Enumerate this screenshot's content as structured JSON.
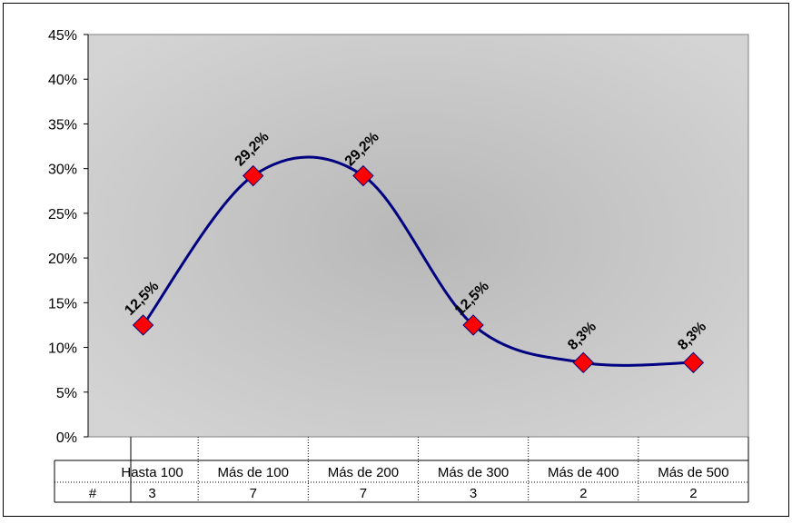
{
  "chart_data": {
    "type": "line",
    "categories": [
      "Hasta 100",
      "Más de 100",
      "Más de 200",
      "Más de 300",
      "Más de 400",
      "Más de 500"
    ],
    "values": [
      12.5,
      29.2,
      29.2,
      12.5,
      8.3,
      8.3
    ],
    "data_labels": [
      "12,5%",
      "29,2%",
      "29,2%",
      "12,5%",
      "8,3%",
      "8,3%"
    ],
    "y_ticks": [
      "0%",
      "5%",
      "10%",
      "15%",
      "20%",
      "25%",
      "30%",
      "35%",
      "40%",
      "45%"
    ],
    "ylim": [
      0,
      45
    ],
    "smooth": true,
    "grid": false,
    "line_color": "#000080",
    "marker_color": "#ff0000",
    "marker_shape": "diamond",
    "plot_background": "#c8c8c8",
    "table": {
      "row_label": "#",
      "counts": [
        "3",
        "7",
        "7",
        "3",
        "2",
        "2"
      ]
    }
  }
}
